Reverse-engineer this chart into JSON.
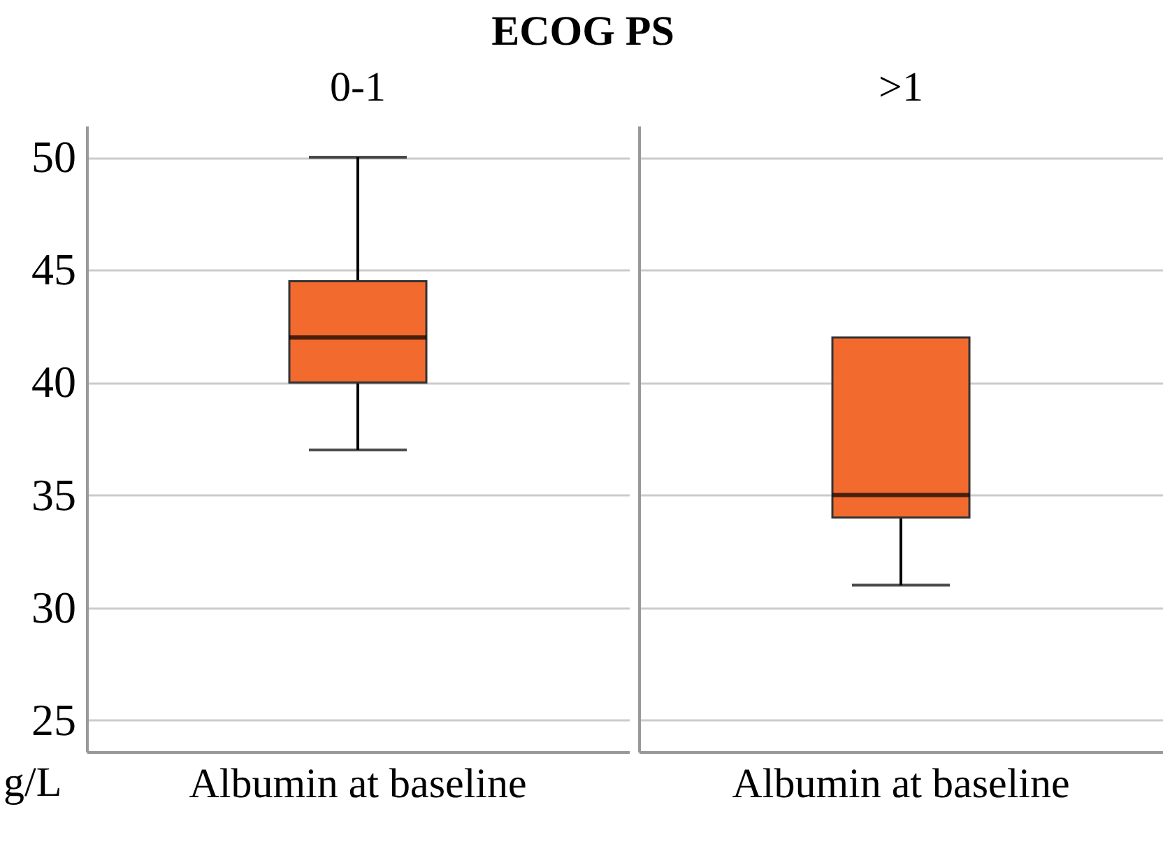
{
  "chart_data": [
    {
      "type": "box",
      "title": "ECOG PS",
      "subtitle": "0-1",
      "ylabel": "g/L",
      "categories": [
        "Albumin at baseline"
      ],
      "color": "#f26a2e",
      "boxes": [
        {
          "low": 37,
          "q1": 40,
          "median": 42,
          "q3": 44.5,
          "high": 50
        }
      ],
      "ylim": [
        23.6,
        51.4
      ],
      "yticks": [
        25,
        30,
        35,
        40,
        45,
        50
      ],
      "grid": "y"
    },
    {
      "type": "box",
      "subtitle": ">1",
      "categories": [
        "Albumin at baseline"
      ],
      "color": "#f26a2e",
      "boxes": [
        {
          "low": 31,
          "q1": 34,
          "median": 35,
          "q3": 42,
          "high": 42
        }
      ],
      "ylim": [
        23.6,
        51.4
      ],
      "yticks": [
        25,
        30,
        35,
        40,
        45,
        50
      ],
      "grid": "y",
      "tick_labels": "x"
    }
  ]
}
